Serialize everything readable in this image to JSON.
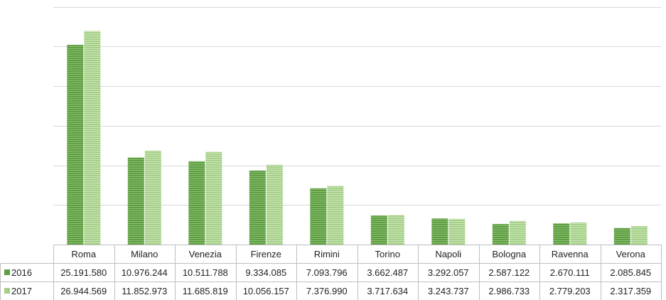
{
  "chart_data": {
    "type": "bar",
    "title": "",
    "xlabel": "",
    "ylabel": "",
    "ylim": [
      0,
      30000000
    ],
    "grid": true,
    "legend": "data-table-left",
    "categories": [
      "Roma",
      "Milano",
      "Venezia",
      "Firenze",
      "Rimini",
      "Torino",
      "Napoli",
      "Bologna",
      "Ravenna",
      "Verona"
    ],
    "series": [
      {
        "name": "2016",
        "color": "#6aa84f",
        "values": [
          25191580,
          10976244,
          10511788,
          9334085,
          7093796,
          3662487,
          3292057,
          2587122,
          2670111,
          2085845
        ],
        "labels": [
          "25.191.580",
          "10.976.244",
          "10.511.788",
          "9.334.085",
          "7.093.796",
          "3.662.487",
          "3.292.057",
          "2.587.122",
          "2.670.111",
          "2.085.845"
        ]
      },
      {
        "name": "2017",
        "color": "#a9d18e",
        "values": [
          26944569,
          11852973,
          11685819,
          10056157,
          7376990,
          3717634,
          3243737,
          2986733,
          2779203,
          2317359
        ],
        "labels": [
          "26.944.569",
          "11.852.973",
          "11.685.819",
          "10.056.157",
          "7.376.990",
          "3.717.634",
          "3.243.737",
          "2.986.733",
          "2.779.203",
          "2.317.359"
        ]
      }
    ]
  }
}
